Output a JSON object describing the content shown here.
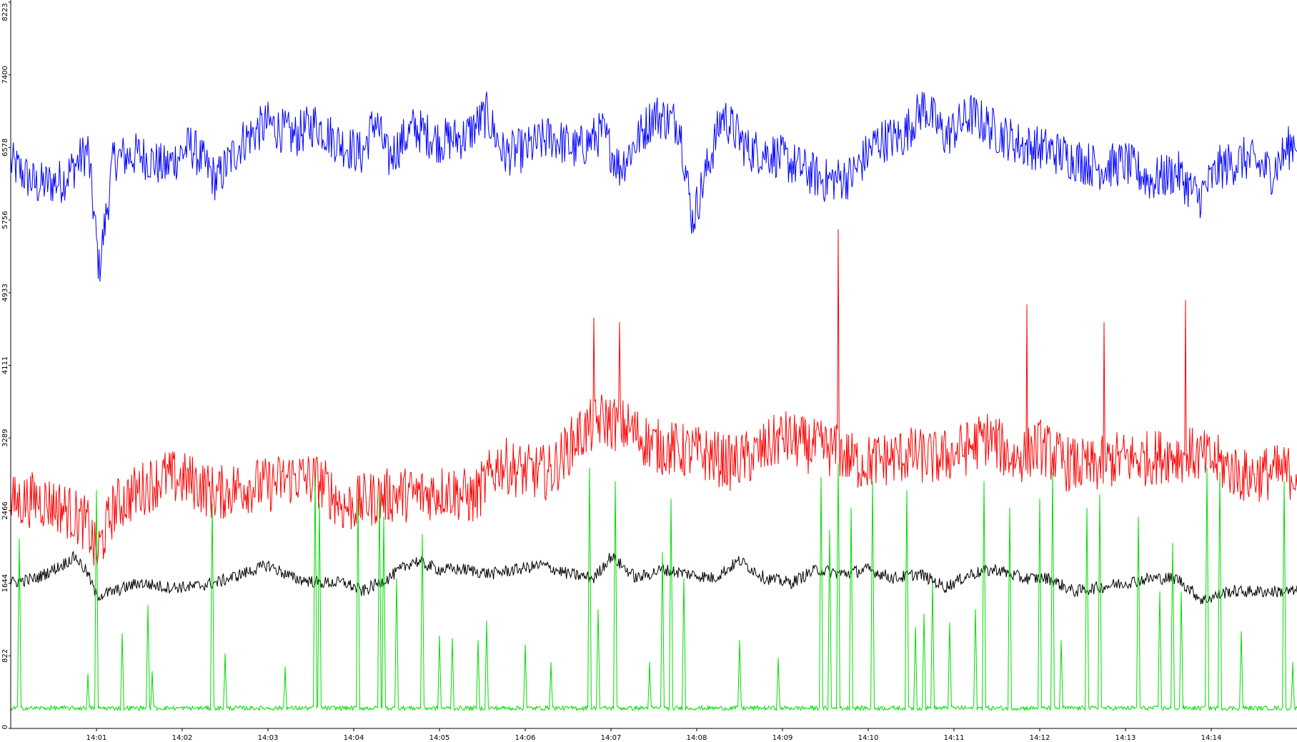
{
  "chart_data": {
    "type": "line",
    "title": "",
    "xlabel": "",
    "ylabel": "",
    "ylim": [
      0,
      8223
    ],
    "y_ticks": [
      {
        "value": 0,
        "label": "0"
      },
      {
        "value": 822,
        "label": "822"
      },
      {
        "value": 1644,
        "label": "1644"
      },
      {
        "value": 2466,
        "label": "2466"
      },
      {
        "value": 3289,
        "label": "3289"
      },
      {
        "value": 4111,
        "label": "4111"
      },
      {
        "value": 4933,
        "label": "4933"
      },
      {
        "value": 5756,
        "label": "5756"
      },
      {
        "value": 6578,
        "label": "6578"
      },
      {
        "value": 7400,
        "label": "7400"
      },
      {
        "value": 8223,
        "label": "8223"
      }
    ],
    "x_range_minutes": [
      0.0,
      15.0
    ],
    "x_ticks": [
      {
        "value": 1,
        "label": "14:01"
      },
      {
        "value": 2,
        "label": "14:02"
      },
      {
        "value": 3,
        "label": "14:03"
      },
      {
        "value": 4,
        "label": "14:04"
      },
      {
        "value": 5,
        "label": "14:05"
      },
      {
        "value": 6,
        "label": "14:06"
      },
      {
        "value": 7,
        "label": "14:07"
      },
      {
        "value": 8,
        "label": "14:08"
      },
      {
        "value": 9,
        "label": "14:09"
      },
      {
        "value": 10,
        "label": "14:10"
      },
      {
        "value": 11,
        "label": "14:11"
      },
      {
        "value": 12,
        "label": "14:12"
      },
      {
        "value": 13,
        "label": "14:13"
      },
      {
        "value": 14,
        "label": "14:14"
      }
    ],
    "grid": false,
    "legend": "none",
    "series": [
      {
        "color": "#0000ff",
        "x": [
          0.0,
          0.3,
          0.6,
          0.9,
          1.03,
          1.2,
          1.5,
          1.8,
          2.1,
          2.4,
          2.7,
          3.0,
          3.3,
          3.55,
          3.8,
          4.1,
          4.25,
          4.4,
          4.7,
          5.0,
          5.3,
          5.55,
          5.75,
          6.0,
          6.3,
          6.6,
          6.9,
          7.1,
          7.5,
          7.8,
          7.95,
          8.3,
          8.6,
          8.9,
          9.2,
          9.5,
          9.8,
          10.1,
          10.4,
          10.65,
          10.9,
          11.2,
          11.5,
          11.8,
          12.1,
          12.4,
          12.7,
          13.0,
          13.3,
          13.6,
          13.85,
          14.1,
          14.4,
          14.7,
          15.0
        ],
        "y": [
          6400,
          6150,
          6200,
          6550,
          5200,
          6450,
          6500,
          6350,
          6600,
          6200,
          6650,
          6850,
          6700,
          6850,
          6650,
          6500,
          6900,
          6450,
          6800,
          6650,
          6700,
          6950,
          6500,
          6550,
          6700,
          6550,
          6750,
          6350,
          6950,
          6850,
          5750,
          6950,
          6550,
          6500,
          6350,
          6200,
          6250,
          6650,
          6700,
          7050,
          6700,
          6950,
          6750,
          6600,
          6550,
          6450,
          6350,
          6400,
          6200,
          6300,
          6000,
          6350,
          6450,
          6300,
          6700
        ]
      },
      {
        "color": "#ff0000",
        "x": [
          0.0,
          0.3,
          0.6,
          0.9,
          1.0,
          1.2,
          1.5,
          1.8,
          2.1,
          2.4,
          2.7,
          3.0,
          3.3,
          3.6,
          3.9,
          4.2,
          4.5,
          4.8,
          5.1,
          5.4,
          5.7,
          6.0,
          6.3,
          6.6,
          6.9,
          7.2,
          7.5,
          7.8,
          8.1,
          8.4,
          8.7,
          9.0,
          9.3,
          9.6,
          9.9,
          10.2,
          10.5,
          10.8,
          11.1,
          11.4,
          11.7,
          12.0,
          12.3,
          12.6,
          12.9,
          13.2,
          13.5,
          13.8,
          14.1,
          14.4,
          14.7,
          15.0
        ],
        "y": [
          2550,
          2600,
          2500,
          2300,
          1950,
          2500,
          2700,
          2850,
          2800,
          2650,
          2750,
          2750,
          2850,
          2800,
          2500,
          2600,
          2650,
          2650,
          2700,
          2600,
          3000,
          2900,
          2900,
          3300,
          3500,
          3400,
          3200,
          3150,
          3100,
          3000,
          3100,
          3300,
          3200,
          3150,
          3000,
          3050,
          3100,
          3050,
          3150,
          3300,
          3050,
          3200,
          3000,
          2950,
          3050,
          3050,
          3100,
          3100,
          3000,
          2850,
          2900,
          2900
        ],
        "spikes": [
          [
            6.8,
            4650
          ],
          [
            7.1,
            4600
          ],
          [
            9.65,
            5650
          ],
          [
            11.85,
            4800
          ],
          [
            13.7,
            4850
          ],
          [
            12.75,
            4600
          ]
        ]
      },
      {
        "color": "#000000",
        "x": [
          0.0,
          0.3,
          0.6,
          0.75,
          0.9,
          1.0,
          1.2,
          1.5,
          1.8,
          2.1,
          2.4,
          2.7,
          3.0,
          3.3,
          3.6,
          3.9,
          4.1,
          4.4,
          4.7,
          5.0,
          5.3,
          5.6,
          5.9,
          6.2,
          6.5,
          6.8,
          7.0,
          7.3,
          7.6,
          7.9,
          8.2,
          8.5,
          8.8,
          9.1,
          9.4,
          9.7,
          10.0,
          10.3,
          10.6,
          10.9,
          11.2,
          11.5,
          11.8,
          12.1,
          12.4,
          12.7,
          13.0,
          13.3,
          13.6,
          13.9,
          14.2,
          14.5,
          14.8,
          15.0
        ],
        "y": [
          1650,
          1700,
          1850,
          1950,
          1750,
          1500,
          1550,
          1650,
          1600,
          1600,
          1650,
          1750,
          1850,
          1700,
          1650,
          1650,
          1550,
          1700,
          1900,
          1800,
          1800,
          1750,
          1800,
          1850,
          1750,
          1700,
          1950,
          1700,
          1800,
          1750,
          1700,
          1900,
          1700,
          1650,
          1800,
          1750,
          1800,
          1700,
          1750,
          1600,
          1750,
          1800,
          1700,
          1700,
          1550,
          1600,
          1650,
          1700,
          1700,
          1450,
          1550,
          1550,
          1550,
          1550
        ]
      },
      {
        "color": "#00dd00",
        "baseline": 230,
        "spikes": [
          [
            0.1,
            2150
          ],
          [
            0.9,
            620
          ],
          [
            1.0,
            2700
          ],
          [
            1.3,
            1080
          ],
          [
            1.6,
            1400
          ],
          [
            1.65,
            650
          ],
          [
            2.35,
            2550
          ],
          [
            2.5,
            850
          ],
          [
            3.2,
            700
          ],
          [
            3.55,
            2850
          ],
          [
            3.6,
            2550
          ],
          [
            4.05,
            2600
          ],
          [
            4.3,
            2650
          ],
          [
            4.35,
            2400
          ],
          [
            4.5,
            1700
          ],
          [
            4.8,
            2200
          ],
          [
            5.0,
            1050
          ],
          [
            5.15,
            1020
          ],
          [
            5.45,
            1000
          ],
          [
            5.55,
            1220
          ],
          [
            6.0,
            950
          ],
          [
            6.3,
            750
          ],
          [
            6.75,
            2950
          ],
          [
            6.85,
            1350
          ],
          [
            7.05,
            2800
          ],
          [
            7.45,
            750
          ],
          [
            7.6,
            2000
          ],
          [
            7.7,
            2600
          ],
          [
            7.85,
            1700
          ],
          [
            8.5,
            1000
          ],
          [
            8.95,
            800
          ],
          [
            9.45,
            2850
          ],
          [
            9.55,
            2250
          ],
          [
            9.65,
            3000
          ],
          [
            9.8,
            2500
          ],
          [
            10.05,
            2800
          ],
          [
            10.45,
            2700
          ],
          [
            10.55,
            1150
          ],
          [
            10.65,
            1300
          ],
          [
            10.75,
            1650
          ],
          [
            10.95,
            1200
          ],
          [
            11.25,
            1350
          ],
          [
            11.35,
            2800
          ],
          [
            11.65,
            2500
          ],
          [
            12.0,
            2600
          ],
          [
            12.15,
            2900
          ],
          [
            12.25,
            1000
          ],
          [
            12.55,
            2500
          ],
          [
            12.7,
            2650
          ],
          [
            13.15,
            2400
          ],
          [
            13.4,
            1550
          ],
          [
            13.55,
            2100
          ],
          [
            13.65,
            1550
          ],
          [
            13.95,
            2950
          ],
          [
            14.1,
            2900
          ],
          [
            14.35,
            1100
          ],
          [
            14.85,
            2800
          ],
          [
            14.95,
            750
          ]
        ]
      }
    ]
  }
}
